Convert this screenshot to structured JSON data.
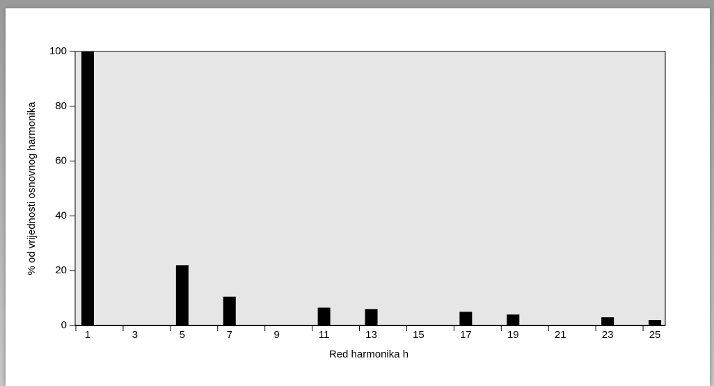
{
  "chart_data": {
    "type": "bar",
    "xlabel": "Red harmonika h",
    "ylabel": "% od vrijednosti osnovnog harmonika",
    "x": [
      1,
      3,
      5,
      7,
      9,
      11,
      13,
      15,
      17,
      19,
      21,
      23,
      25
    ],
    "values": [
      100,
      0,
      22,
      10.5,
      0,
      6.5,
      6,
      0,
      5,
      4,
      0,
      3,
      2
    ],
    "color": "#000000",
    "xlim": [
      0.47,
      25.44
    ],
    "xticks": [
      1,
      3,
      5,
      7,
      9,
      11,
      13,
      15,
      17,
      19,
      21,
      23,
      25
    ],
    "ylim": [
      0,
      100
    ],
    "yticks": [
      0,
      20,
      40,
      60,
      80,
      100
    ]
  }
}
